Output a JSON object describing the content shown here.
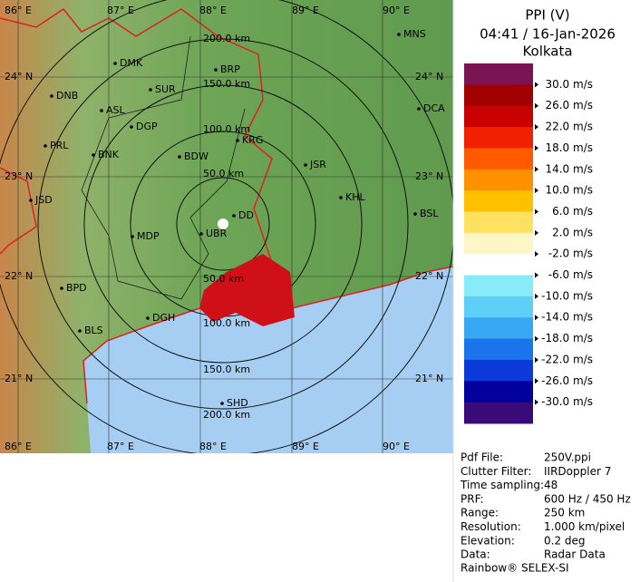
{
  "map": {
    "lon_labels": [
      "86° E",
      "87° E",
      "88° E",
      "89° E",
      "90° E"
    ],
    "lat_labels": [
      "24° N",
      "23° N",
      "22° N",
      "21° N"
    ],
    "ring_labels_top": [
      "200.0 km",
      "150.0 km",
      "100.0 km",
      "50.0 km"
    ],
    "ring_labels_bottom": [
      "50.0 km",
      "100.0 km",
      "150.0 km",
      "200.0 km"
    ],
    "places": [
      "MNS",
      "DMK",
      "BRP",
      "DNB",
      "SUR",
      "ASL",
      "DGP",
      "DCA",
      "PRL",
      "KRG",
      "BNK",
      "BDW",
      "JSR",
      "KHL",
      "JSD",
      "DD",
      "BSL",
      "MDP",
      "UBR",
      "BPD",
      "DGH",
      "BLS",
      "SHD"
    ]
  },
  "panel": {
    "title": "PPI (V)",
    "time": "04:41 / 16-Jan-2026",
    "site": "Kolkata"
  },
  "legend": {
    "labels": [
      "30.0 m/s",
      "26.0 m/s",
      "22.0 m/s",
      "18.0 m/s",
      "14.0 m/s",
      "10.0 m/s",
      "6.0 m/s",
      "2.0 m/s",
      "-2.0 m/s",
      "-6.0 m/s",
      "-10.0 m/s",
      "-14.0 m/s",
      "-18.0 m/s",
      "-22.0 m/s",
      "-26.0 m/s",
      "-30.0 m/s"
    ],
    "colors": [
      "#7a1452",
      "#a00000",
      "#c80000",
      "#f02000",
      "#ff5a00",
      "#ff9000",
      "#ffc000",
      "#ffe060",
      "#fff6c8",
      "#ffffff",
      "#88ecf8",
      "#5ed0f8",
      "#38a8f4",
      "#1c74ec",
      "#0c3ad8",
      "#00009c",
      "#3a0a78"
    ]
  },
  "info": {
    "rows": [
      [
        "Pdf File:",
        "250V.ppi"
      ],
      [
        "Clutter Filter:",
        "IIRDoppler 7"
      ],
      [
        "Time sampling:",
        "48"
      ],
      [
        "PRF:",
        "600 Hz / 450 Hz"
      ],
      [
        "Range:",
        "250 km"
      ],
      [
        "Resolution:",
        "1.000 km/pixel"
      ],
      [
        "Elevation:",
        "0.2 deg"
      ],
      [
        "Data:",
        "Radar Data"
      ]
    ]
  },
  "footer": "Rainbow® SELEX-SI"
}
